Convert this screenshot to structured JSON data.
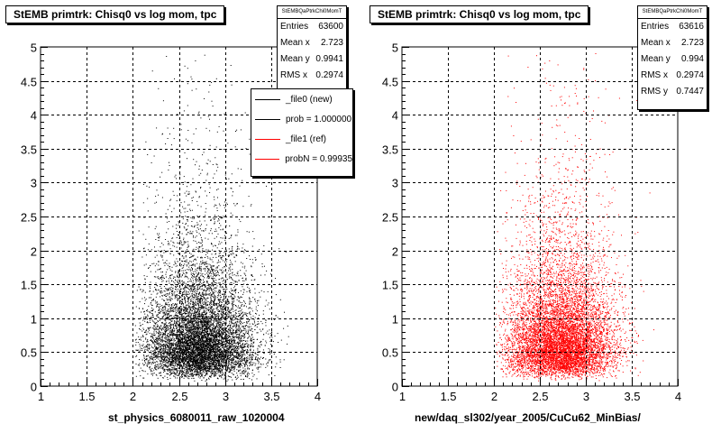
{
  "chart_data": [
    {
      "type": "scatter",
      "title": "StEMB primtrk: Chisq0 vs log mom, tpc",
      "xlabel": "st_physics_6080011_raw_1020004",
      "ylabel": "",
      "xlim": [
        1,
        4
      ],
      "ylim": [
        0,
        5
      ],
      "x_ticks": [
        "1",
        "1.5",
        "2",
        "2.5",
        "3",
        "3.5",
        "4"
      ],
      "y_ticks": [
        "0",
        "0.5",
        "1",
        "1.5",
        "2",
        "2.5",
        "3",
        "3.5",
        "4",
        "4.5",
        "5"
      ],
      "grid": true,
      "color": "#000000",
      "distribution": {
        "x_mean": 2.723,
        "x_rms": 0.2974,
        "y_mean": 0.9941,
        "points_drawn": 9000
      },
      "stats": {
        "name": "StEMBQaPtrkChi0MomT",
        "rows": [
          {
            "label": "Entries",
            "value": "63600"
          },
          {
            "label": "Mean x",
            "value": "2.723"
          },
          {
            "label": "Mean y",
            "value": "0.9941"
          },
          {
            "label": "RMS x",
            "value": "0.2974"
          }
        ]
      },
      "legend": {
        "placement": "top-right",
        "entries": [
          {
            "label": "_file0 (new)",
            "color": "#000000"
          },
          {
            "label": "prob = 1.000000",
            "color": "#000000"
          },
          {
            "label": "_file1 (ref)",
            "color": "#ff0000"
          },
          {
            "label": "probN = 0.99935",
            "color": "#ff0000"
          }
        ]
      }
    },
    {
      "type": "scatter",
      "title": "StEMB primtrk: Chisq0 vs log mom, tpc",
      "xlabel": "new/daq_sl302/year_2005/CuCu62_MinBias/",
      "ylabel": "",
      "xlim": [
        1,
        4
      ],
      "ylim": [
        0,
        5
      ],
      "x_ticks": [
        "1",
        "1.5",
        "2",
        "2.5",
        "3",
        "3.5",
        "4"
      ],
      "y_ticks": [
        "0",
        "0.5",
        "1",
        "1.5",
        "2",
        "2.5",
        "3",
        "3.5",
        "4",
        "4.5",
        "5"
      ],
      "grid": true,
      "color": "#ff0000",
      "distribution": {
        "x_mean": 2.723,
        "x_rms": 0.2974,
        "y_mean": 0.994,
        "y_rms": 0.7447,
        "points_drawn": 9000
      },
      "stats": {
        "name": "StEMBQaPtrkChi0MomT",
        "rows": [
          {
            "label": "Entries",
            "value": "63616"
          },
          {
            "label": "Mean x",
            "value": "2.723"
          },
          {
            "label": "Mean y",
            "value": "0.994"
          },
          {
            "label": "RMS x",
            "value": "0.2974"
          },
          {
            "label": "RMS y",
            "value": "0.7447"
          }
        ]
      }
    }
  ]
}
